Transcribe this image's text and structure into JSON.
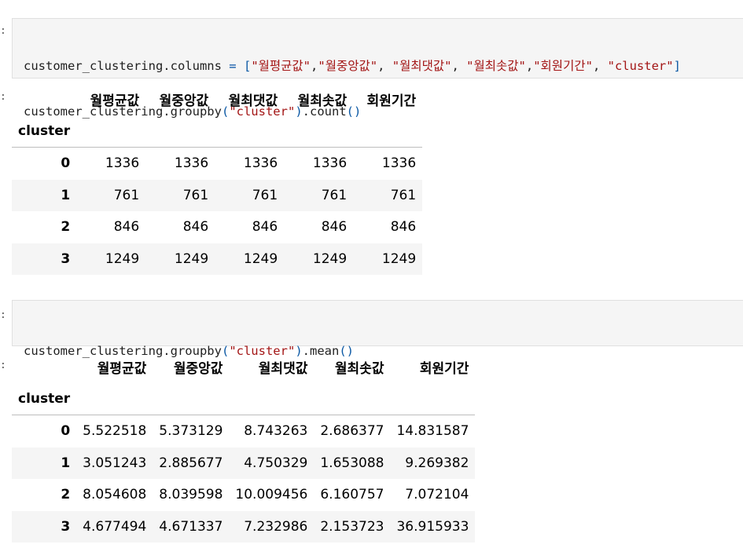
{
  "cell1": {
    "prompt": ":",
    "line1": {
      "prefix": "customer_clustering.columns ",
      "eq": "=",
      "open": " [",
      "items": [
        "\"월평균값\"",
        "\"월중앙값\"",
        "\"월최댓값\"",
        "\"월최솟값\"",
        "\"회원기간\"",
        "\"cluster\""
      ],
      "seps": [
        ",",
        ", ",
        ", ",
        ",",
        ", "
      ],
      "close": "]"
    },
    "line2": {
      "prefix": "customer_clustering.groupby",
      "open": "(",
      "arg": "\"cluster\"",
      "close": ")",
      "suffix": ".count",
      "call": "()"
    }
  },
  "output1": {
    "prompt": ":",
    "columns": [
      "월평균값",
      "월중앙값",
      "월최댓값",
      "월최솟값",
      "회원기간"
    ],
    "index_name": "cluster",
    "rows": [
      {
        "index": "0",
        "values": [
          "1336",
          "1336",
          "1336",
          "1336",
          "1336"
        ]
      },
      {
        "index": "1",
        "values": [
          "761",
          "761",
          "761",
          "761",
          "761"
        ]
      },
      {
        "index": "2",
        "values": [
          "846",
          "846",
          "846",
          "846",
          "846"
        ]
      },
      {
        "index": "3",
        "values": [
          "1249",
          "1249",
          "1249",
          "1249",
          "1249"
        ]
      }
    ]
  },
  "cell2": {
    "prompt": ":",
    "line1": {
      "prefix": "customer_clustering.groupby",
      "open": "(",
      "arg": "\"cluster\"",
      "close": ")",
      "suffix": ".mean",
      "call": "()"
    }
  },
  "output2": {
    "prompt": ":",
    "columns": [
      "월평균값",
      "월중앙값",
      "월최댓값",
      "월최솟값",
      "회원기간"
    ],
    "index_name": "cluster",
    "rows": [
      {
        "index": "0",
        "values": [
          "5.522518",
          "5.373129",
          "8.743263",
          "2.686377",
          "14.831587"
        ]
      },
      {
        "index": "1",
        "values": [
          "3.051243",
          "2.885677",
          "4.750329",
          "1.653088",
          "9.269382"
        ]
      },
      {
        "index": "2",
        "values": [
          "8.054608",
          "8.039598",
          "10.009456",
          "6.160757",
          "7.072104"
        ]
      },
      {
        "index": "3",
        "values": [
          "4.677494",
          "4.671337",
          "7.232986",
          "2.153723",
          "36.915933"
        ]
      }
    ]
  }
}
